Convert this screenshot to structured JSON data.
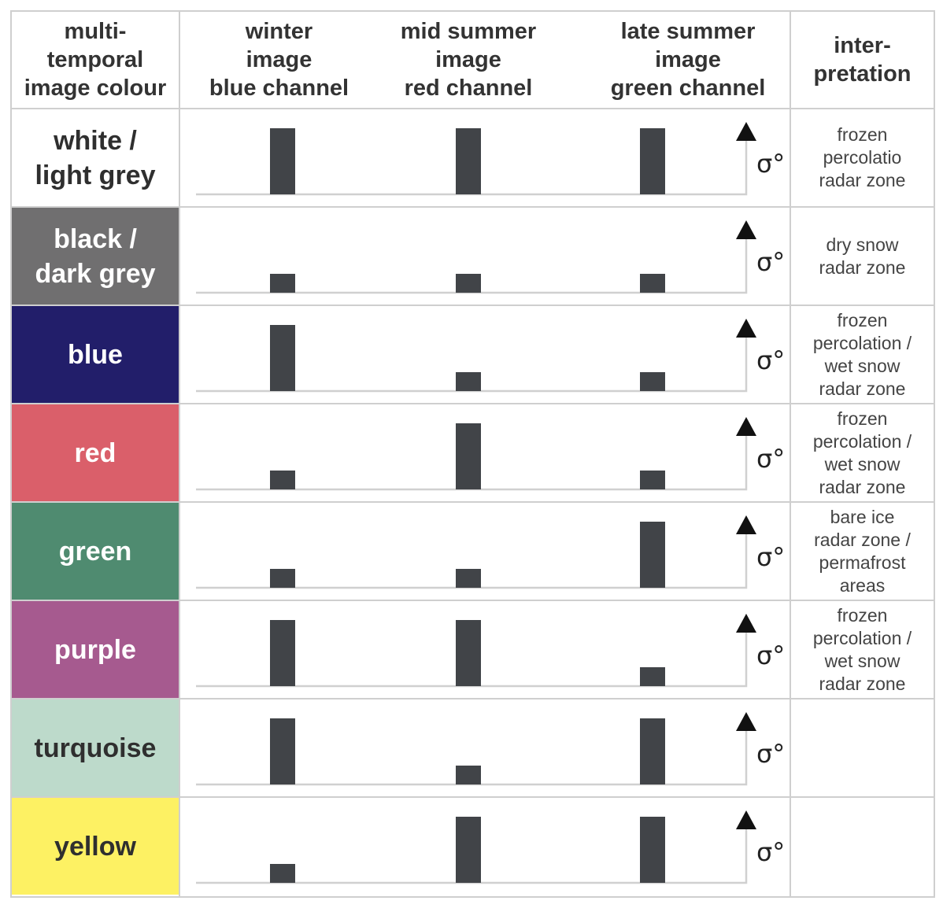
{
  "headers": {
    "colour": "multi-\ntemporal\nimage colour",
    "winter": "winter\nimage\nblue channel",
    "mid_summer": "mid summer\nimage\nred channel",
    "late_summer": "late summer\nimage\ngreen channel",
    "interpretation": "inter-\npretation"
  },
  "axis_symbol": "σ°",
  "colors": {
    "bar": "#414448",
    "grid": "#cfcfcf",
    "axis": "#d0d0d0"
  },
  "rows": [
    {
      "label": "white /\nlight grey",
      "bg": "#ffffff",
      "fg": "#2f2f2f",
      "interpretation": "frozen\npercolatio\nradar zone",
      "levels": {
        "winter": "high",
        "mid_summer": "high",
        "late_summer": "high"
      }
    },
    {
      "label": "black /\ndark grey",
      "bg": "#706f70",
      "fg": "#ffffff",
      "interpretation": "dry snow\nradar zone",
      "levels": {
        "winter": "low",
        "mid_summer": "low",
        "late_summer": "low"
      }
    },
    {
      "label": "blue",
      "bg": "#221e6a",
      "fg": "#ffffff",
      "interpretation": "frozen\npercolation /\nwet snow\nradar zone",
      "levels": {
        "winter": "high",
        "mid_summer": "low",
        "late_summer": "low"
      }
    },
    {
      "label": "red",
      "bg": "#da5f6a",
      "fg": "#ffffff",
      "interpretation": "frozen\npercolation /\nwet snow\nradar zone",
      "levels": {
        "winter": "low",
        "mid_summer": "high",
        "late_summer": "low"
      }
    },
    {
      "label": "green",
      "bg": "#4f8b70",
      "fg": "#ffffff",
      "interpretation": "bare ice\nradar zone /\npermafrost\nareas",
      "levels": {
        "winter": "low",
        "mid_summer": "low",
        "late_summer": "high"
      }
    },
    {
      "label": "purple",
      "bg": "#a65a8f",
      "fg": "#ffffff",
      "interpretation": "frozen\npercolation /\nwet snow\nradar zone",
      "levels": {
        "winter": "high",
        "mid_summer": "high",
        "late_summer": "low"
      }
    },
    {
      "label": "turquoise",
      "bg": "#bddacb",
      "fg": "#2f2f2f",
      "interpretation": "",
      "levels": {
        "winter": "high",
        "mid_summer": "low",
        "late_summer": "high"
      }
    },
    {
      "label": "yellow",
      "bg": "#fdf163",
      "fg": "#2f2f2f",
      "interpretation": "",
      "levels": {
        "winter": "low",
        "mid_summer": "high",
        "late_summer": "high"
      }
    }
  ]
}
